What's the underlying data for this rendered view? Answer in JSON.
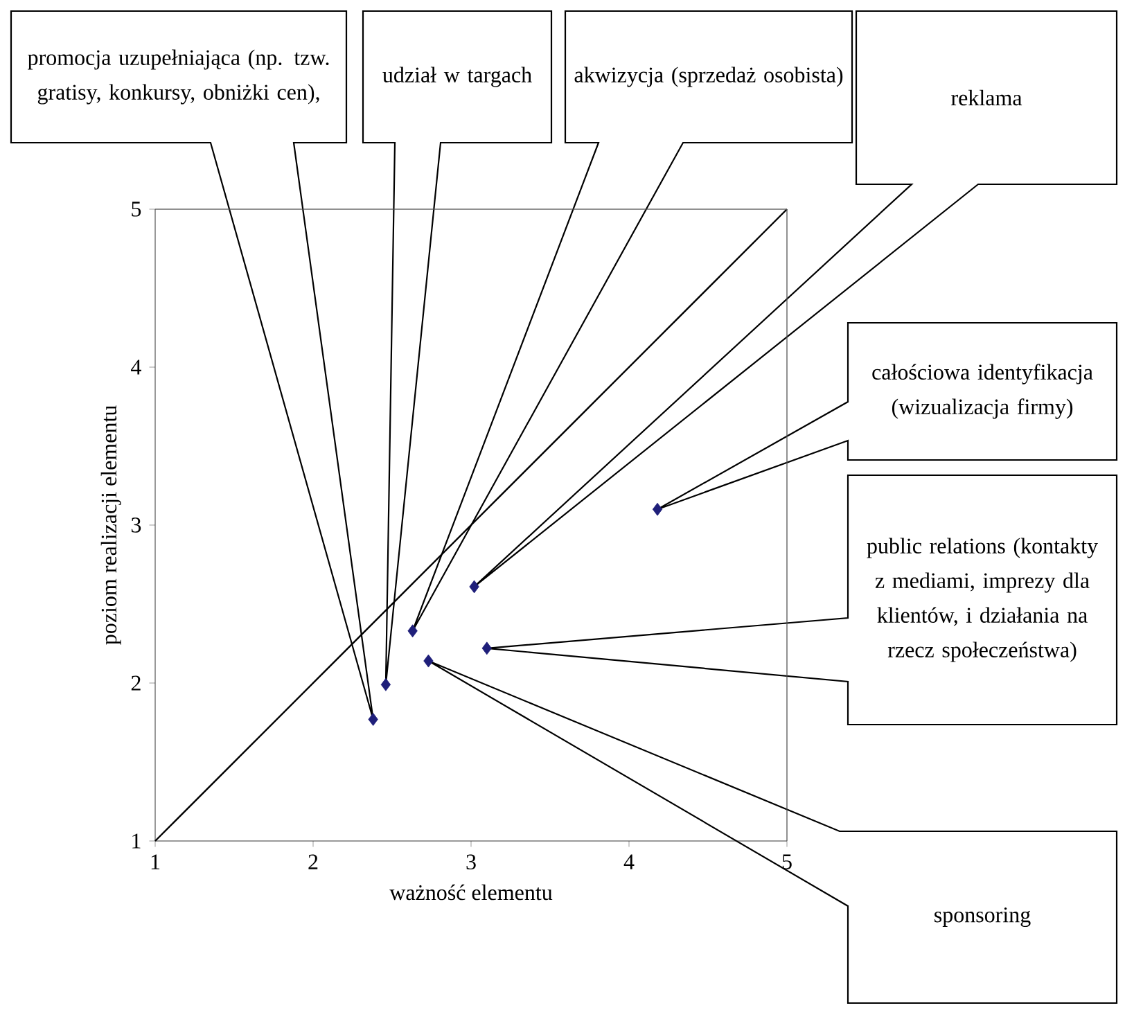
{
  "chart_data": {
    "type": "scatter",
    "xlabel": "ważność elementu",
    "ylabel": "poziom realizacji elementu",
    "xlim": [
      1,
      5
    ],
    "ylim": [
      1,
      5
    ],
    "xticks": [
      1,
      2,
      3,
      4,
      5
    ],
    "yticks": [
      1,
      2,
      3,
      4,
      5
    ],
    "marker": "diamond",
    "series": [
      {
        "color": "#1f1f7a",
        "x": [
          2.38,
          2.46,
          2.63,
          2.73,
          3.02,
          3.1,
          4.18
        ],
        "values": [
          1.77,
          1.99,
          2.33,
          2.14,
          2.61,
          2.22,
          3.1
        ]
      },
      {
        "type": "line",
        "marker": "none",
        "color": "#000000",
        "x": [
          1,
          5
        ],
        "values": [
          1,
          5
        ]
      }
    ],
    "annotations": [
      "promocja uzupełniająca (np. tzw. gratisy, konkursy, obniżki cen),",
      "udział w targach",
      "akwizycja (sprzedaż osobista)",
      "reklama",
      "całościowa identyfikacja (wizualizacja firmy)",
      "public relations (kontakty z mediami, imprezy dla klientów, i działania na rzecz społeczeństwa)",
      "sponsoring"
    ]
  }
}
